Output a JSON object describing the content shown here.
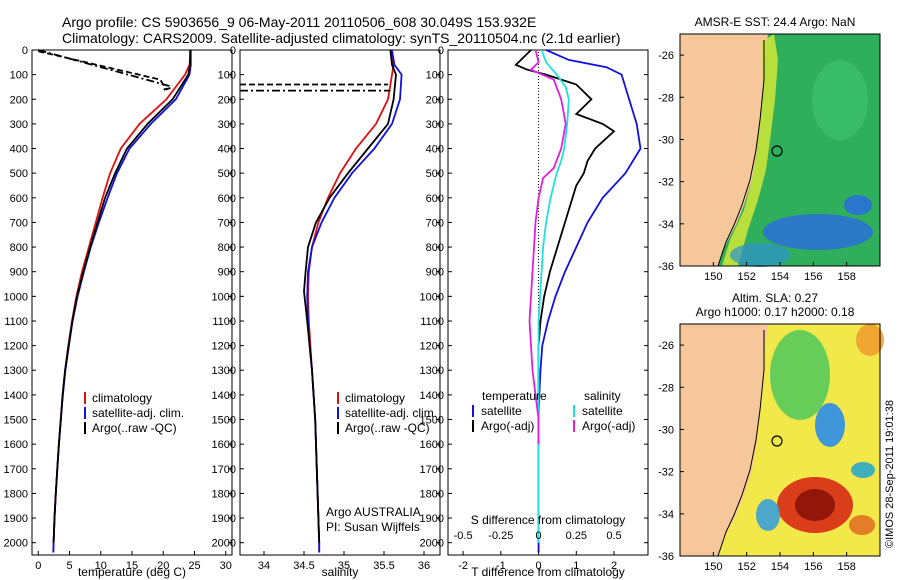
{
  "header": {
    "line1": "Argo profile: CS 5903656_9 06-May-2011 20110506_608 30.049S 153.932E",
    "line2": "Climatology: CARS2009. Satellite-adjusted climatology: synTS_20110504.nc (2.1d earlier)"
  },
  "panels": {
    "temperature": {
      "xlabel": "temperature (deg C)",
      "xticks": [
        "0",
        "5",
        "10",
        "15",
        "20",
        "25",
        "30"
      ],
      "legend": [
        "climatology",
        "satellite-adj. clim.",
        "Argo(..raw -QC)"
      ]
    },
    "salinity": {
      "xlabel": "salinity",
      "xticks": [
        "34",
        "34.5",
        "35",
        "35.5",
        "36"
      ],
      "legend": [
        "climatology",
        "satellite-adj. clim.",
        "Argo(..raw -QC)"
      ],
      "note1": "Argo AUSTRALIA",
      "note2": "PI: Susan Wijffels"
    },
    "difference": {
      "xlabel": "T difference from climatology",
      "xticks": [
        "-2",
        "-1",
        "0",
        "1",
        "2"
      ],
      "top_label": "S difference from climatology",
      "top_ticks": [
        "-0.5",
        "-0.25",
        "0",
        "0.25",
        "0.5"
      ],
      "legend_t_title": "temperature",
      "legend_s_title": "salinity",
      "legend_t": [
        "satellite",
        "Argo(-adj)"
      ],
      "legend_s": [
        "satellite",
        "Argo(-adj)"
      ]
    },
    "yticks": [
      "0",
      "100",
      "200",
      "300",
      "400",
      "500",
      "600",
      "700",
      "800",
      "900",
      "1000",
      "1100",
      "1200",
      "1300",
      "1400",
      "1500",
      "1600",
      "1700",
      "1800",
      "1900",
      "2000"
    ],
    "sst_map": {
      "title": "AMSR-E SST: 24.4  Argo: NaN",
      "yticks": [
        "-26",
        "-28",
        "-30",
        "-32",
        "-34",
        "-36"
      ],
      "xticks": [
        "150",
        "152",
        "154",
        "156",
        "158"
      ]
    },
    "sla_map": {
      "title1": "Altim. SLA: 0.27",
      "title2": "Argo h1000: 0.17 h2000: 0.18",
      "yticks": [
        "-26",
        "-28",
        "-30",
        "-32",
        "-34",
        "-36"
      ],
      "xticks": [
        "150",
        "152",
        "154",
        "156",
        "158"
      ]
    },
    "side_label": "©IMOS 28-Sep-2011 19:01:38"
  },
  "colors": {
    "climatology": "#e01010",
    "satellite": "#1010e0",
    "argo": "#000000",
    "sat_salinity": "#20e0e0",
    "argo_salinity": "#e020e0",
    "land": "#f7c79c"
  },
  "chart_data": [
    {
      "type": "line",
      "xlabel": "temperature (deg C)",
      "ylabel": "",
      "xlim": [
        -1,
        31
      ],
      "ylim": [
        2050,
        0
      ],
      "series": [
        {
          "name": "climatology",
          "points": [
            [
              24.4,
              0
            ],
            [
              24.2,
              60
            ],
            [
              23.5,
              100
            ],
            [
              20.5,
              200
            ],
            [
              16.2,
              300
            ],
            [
              13.2,
              400
            ],
            [
              11.5,
              500
            ],
            [
              10.3,
              600
            ],
            [
              9.2,
              700
            ],
            [
              8.1,
              800
            ],
            [
              7.0,
              900
            ],
            [
              6.1,
              1000
            ],
            [
              5.4,
              1100
            ],
            [
              4.8,
              1200
            ],
            [
              4.3,
              1300
            ],
            [
              3.9,
              1400
            ],
            [
              3.6,
              1500
            ],
            [
              3.3,
              1600
            ],
            [
              3.05,
              1700
            ],
            [
              2.8,
              1800
            ],
            [
              2.6,
              1900
            ],
            [
              2.45,
              2000
            ],
            [
              2.4,
              2040
            ]
          ]
        },
        {
          "name": "satellite-adj. clim.",
          "points": [
            [
              24.4,
              0
            ],
            [
              24.4,
              60
            ],
            [
              24.2,
              100
            ],
            [
              22.0,
              200
            ],
            [
              18.0,
              300
            ],
            [
              14.6,
              400
            ],
            [
              12.6,
              500
            ],
            [
              11.1,
              600
            ],
            [
              9.7,
              700
            ],
            [
              8.4,
              800
            ],
            [
              7.3,
              900
            ],
            [
              6.3,
              1000
            ],
            [
              5.5,
              1100
            ],
            [
              4.9,
              1200
            ],
            [
              4.35,
              1300
            ],
            [
              3.95,
              1400
            ],
            [
              3.6,
              1500
            ],
            [
              3.3,
              1600
            ],
            [
              3.05,
              1700
            ],
            [
              2.8,
              1800
            ],
            [
              2.6,
              1900
            ],
            [
              2.45,
              2000
            ],
            [
              2.4,
              2040
            ]
          ]
        },
        {
          "name": "Argo(..raw -QC)",
          "points": [
            [
              24.3,
              0
            ],
            [
              24.3,
              60
            ],
            [
              24.0,
              100
            ],
            [
              21.5,
              200
            ],
            [
              17.5,
              300
            ],
            [
              14.2,
              400
            ],
            [
              12.3,
              500
            ],
            [
              10.7,
              600
            ],
            [
              9.5,
              700
            ],
            [
              8.3,
              800
            ],
            [
              7.2,
              900
            ],
            [
              6.2,
              1000
            ],
            [
              5.45,
              1100
            ],
            [
              4.85,
              1200
            ],
            [
              4.3,
              1300
            ],
            [
              3.9,
              1400
            ],
            [
              3.6,
              1500
            ],
            [
              3.3,
              1600
            ],
            [
              3.05,
              1700
            ],
            [
              2.8,
              1800
            ],
            [
              2.6,
              1900
            ],
            [
              2.45,
              2000
            ]
          ]
        },
        {
          "name": "Argo raw dashed",
          "points": [
            [
              0,
              5
            ],
            [
              19.5,
              120
            ],
            [
              20.5,
              160
            ],
            [
              21.5,
              150
            ]
          ]
        },
        {
          "name": "Argo raw dash-dot",
          "points": [
            [
              0,
              0
            ],
            [
              20.8,
              145
            ],
            [
              19.8,
              170
            ]
          ]
        }
      ]
    },
    {
      "type": "line",
      "xlabel": "salinity",
      "ylabel": "",
      "xlim": [
        33.7,
        36.2
      ],
      "ylim": [
        2050,
        0
      ],
      "series": [
        {
          "name": "climatology",
          "points": [
            [
              35.6,
              0
            ],
            [
              35.62,
              60
            ],
            [
              35.6,
              100
            ],
            [
              35.55,
              200
            ],
            [
              35.4,
              300
            ],
            [
              35.15,
              400
            ],
            [
              34.95,
              500
            ],
            [
              34.8,
              600
            ],
            [
              34.68,
              700
            ],
            [
              34.6,
              800
            ],
            [
              34.56,
              900
            ],
            [
              34.55,
              1000
            ],
            [
              34.56,
              1100
            ],
            [
              34.58,
              1200
            ],
            [
              34.6,
              1300
            ],
            [
              34.62,
              1400
            ],
            [
              34.64,
              1500
            ],
            [
              34.65,
              1600
            ],
            [
              34.66,
              1700
            ],
            [
              34.67,
              1800
            ],
            [
              34.68,
              1900
            ],
            [
              34.69,
              2000
            ],
            [
              34.69,
              2040
            ]
          ]
        },
        {
          "name": "satellite-adj. clim.",
          "points": [
            [
              35.6,
              0
            ],
            [
              35.63,
              60
            ],
            [
              35.72,
              100
            ],
            [
              35.7,
              200
            ],
            [
              35.6,
              300
            ],
            [
              35.38,
              400
            ],
            [
              35.1,
              500
            ],
            [
              34.88,
              600
            ],
            [
              34.72,
              700
            ],
            [
              34.6,
              800
            ],
            [
              34.55,
              900
            ],
            [
              34.54,
              1000
            ],
            [
              34.55,
              1100
            ],
            [
              34.57,
              1200
            ],
            [
              34.6,
              1300
            ],
            [
              34.62,
              1400
            ],
            [
              34.64,
              1500
            ],
            [
              34.65,
              1600
            ],
            [
              34.66,
              1700
            ],
            [
              34.67,
              1800
            ],
            [
              34.68,
              1900
            ],
            [
              34.69,
              2000
            ],
            [
              34.69,
              2040
            ]
          ]
        },
        {
          "name": "Argo(..raw -QC)",
          "points": [
            [
              35.58,
              0
            ],
            [
              35.6,
              60
            ],
            [
              35.65,
              100
            ],
            [
              35.62,
              200
            ],
            [
              35.55,
              300
            ],
            [
              35.3,
              400
            ],
            [
              35.05,
              500
            ],
            [
              34.82,
              600
            ],
            [
              34.65,
              700
            ],
            [
              34.55,
              800
            ],
            [
              34.52,
              900
            ],
            [
              34.5,
              980
            ],
            [
              34.54,
              1100
            ],
            [
              34.57,
              1200
            ],
            [
              34.6,
              1300
            ],
            [
              34.62,
              1400
            ],
            [
              34.64,
              1500
            ],
            [
              34.65,
              1600
            ],
            [
              34.66,
              1700
            ],
            [
              34.67,
              1800
            ],
            [
              34.68,
              1900
            ],
            [
              34.69,
              2000
            ]
          ]
        },
        {
          "name": "Argo raw dashed",
          "points": [
            [
              33.7,
              140
            ],
            [
              35.55,
              140
            ]
          ]
        },
        {
          "name": "Argo raw dash-dot",
          "points": [
            [
              33.7,
              165
            ],
            [
              35.58,
              165
            ]
          ]
        }
      ]
    },
    {
      "type": "line",
      "xlabel": "T difference from climatology",
      "xlim": [
        -2.4,
        2.9
      ],
      "top_xlim": [
        -0.6,
        0.725
      ],
      "ylim": [
        2050,
        0
      ],
      "series": [
        {
          "name": "temperature satellite",
          "axis": "T",
          "points": [
            [
              0.2,
              0
            ],
            [
              0.8,
              40
            ],
            [
              1.8,
              70
            ],
            [
              2.2,
              100
            ],
            [
              2.4,
              200
            ],
            [
              2.6,
              300
            ],
            [
              2.7,
              400
            ],
            [
              2.3,
              500
            ],
            [
              1.7,
              600
            ],
            [
              1.3,
              700
            ],
            [
              1.0,
              800
            ],
            [
              0.7,
              900
            ],
            [
              0.45,
              1000
            ],
            [
              0.25,
              1100
            ],
            [
              0.1,
              1200
            ],
            [
              0.05,
              1300
            ],
            [
              0.02,
              1400
            ],
            [
              0,
              1500
            ],
            [
              0,
              1700
            ],
            [
              0,
              2000
            ],
            [
              0,
              2040
            ]
          ]
        },
        {
          "name": "temperature Argo(-adj)",
          "axis": "T",
          "points": [
            [
              -0.2,
              0
            ],
            [
              -0.6,
              60
            ],
            [
              -0.3,
              80
            ],
            [
              0.2,
              100
            ],
            [
              1.0,
              140
            ],
            [
              1.4,
              200
            ],
            [
              1.0,
              260
            ],
            [
              1.7,
              300
            ],
            [
              2.0,
              330
            ],
            [
              1.5,
              400
            ],
            [
              1.3,
              450
            ],
            [
              1.2,
              500
            ],
            [
              1.0,
              550
            ],
            [
              0.7,
              700
            ],
            [
              0.5,
              800
            ],
            [
              0.3,
              900
            ],
            [
              0.15,
              1000
            ],
            [
              0.05,
              1100
            ],
            [
              0,
              1200
            ],
            [
              0,
              1400
            ],
            [
              0,
              1600
            ]
          ]
        },
        {
          "name": "salinity satellite",
          "axis": "S",
          "points": [
            [
              0.02,
              0
            ],
            [
              0.05,
              50
            ],
            [
              0.12,
              100
            ],
            [
              0.18,
              150
            ],
            [
              0.2,
              200
            ],
            [
              0.19,
              300
            ],
            [
              0.17,
              400
            ],
            [
              0.15,
              450
            ],
            [
              0.12,
              500
            ],
            [
              0.08,
              600
            ],
            [
              0.05,
              700
            ],
            [
              0.03,
              800
            ],
            [
              0.02,
              900
            ],
            [
              0.01,
              1000
            ],
            [
              0.0,
              1100
            ],
            [
              0.0,
              1500
            ],
            [
              0.0,
              2000
            ]
          ]
        },
        {
          "name": "salinity Argo(-adj)",
          "axis": "S",
          "points": [
            [
              -0.02,
              0
            ],
            [
              0.0,
              50
            ],
            [
              -0.05,
              80
            ],
            [
              0.1,
              120
            ],
            [
              0.15,
              200
            ],
            [
              0.18,
              300
            ],
            [
              0.15,
              400
            ],
            [
              0.1,
              480
            ],
            [
              0.03,
              520
            ],
            [
              0.0,
              600
            ],
            [
              -0.02,
              700
            ],
            [
              -0.03,
              800
            ],
            [
              -0.04,
              900
            ],
            [
              -0.05,
              1000
            ],
            [
              -0.06,
              1100
            ],
            [
              -0.05,
              1200
            ],
            [
              -0.04,
              1300
            ],
            [
              -0.02,
              1400
            ],
            [
              0.0,
              1500
            ],
            [
              0.0,
              1600
            ]
          ]
        }
      ]
    }
  ]
}
